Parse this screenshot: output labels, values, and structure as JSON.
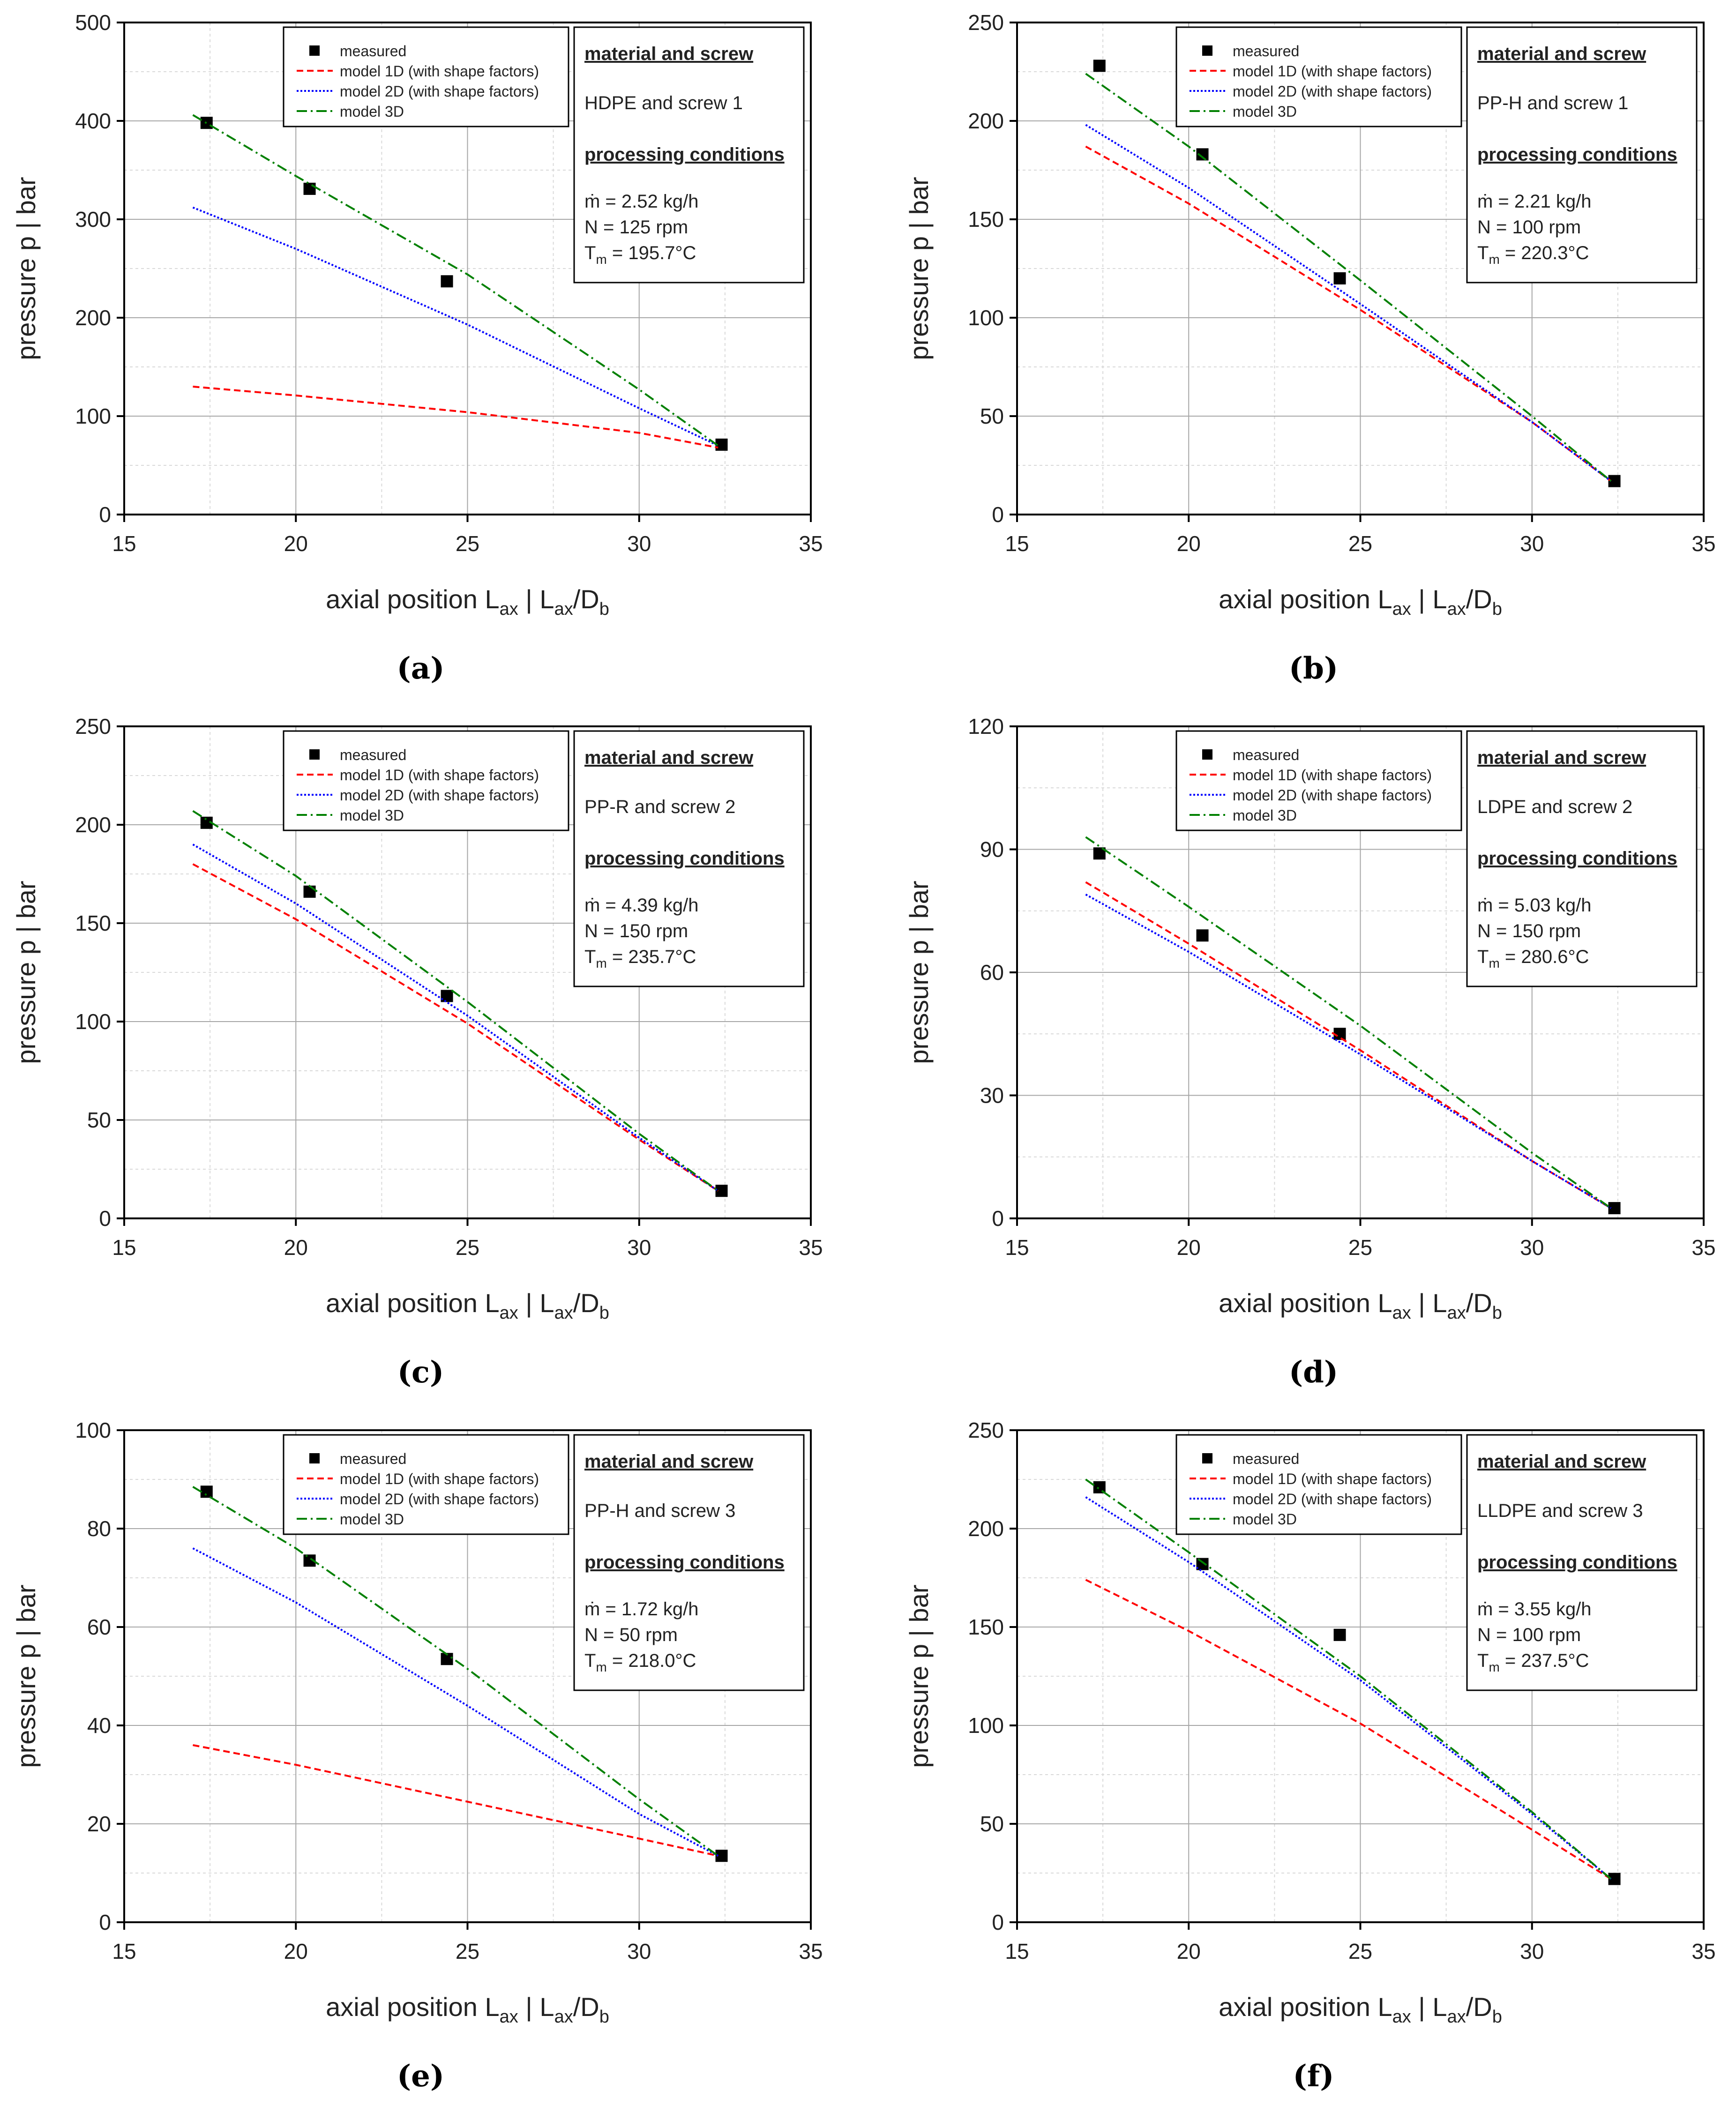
{
  "figure": {
    "xlabel": {
      "main": "axial position L",
      "sub1": "ax",
      "sep": " | L",
      "sub2": "ax",
      "tail": "/D",
      "sub3": "b"
    },
    "ylabel": "pressure p | bar",
    "info_heading_1": "material and screw",
    "info_heading_2": "processing conditions",
    "legend_labels": {
      "measured": "measured",
      "model1d": "model 1D (with shape factors)",
      "model2d": "model 2D (with shape factors)",
      "model3d": "model 3D"
    },
    "colors": {
      "measured": "#000000",
      "model1d": "#ff0000",
      "model2d": "#0000ff",
      "model3d": "#008000",
      "grid": "#a6a6a6",
      "axis": "#000000"
    }
  },
  "chart_data": [
    {
      "type": "line",
      "label": "(a)",
      "material_screw": "HDPE and screw 1",
      "mass_flow": "ṁ = 2.52 kg/h",
      "speed": "N = 125 rpm",
      "temp_prefix": "T",
      "temp_sub": "m",
      "temp_value": " = 195.7°C",
      "xlim": [
        15,
        35
      ],
      "ylim": [
        0,
        500
      ],
      "xticks": [
        15,
        20,
        25,
        30,
        35
      ],
      "yticks": [
        0,
        100,
        200,
        300,
        400,
        500
      ],
      "series": [
        {
          "name": "measured",
          "kind": "scatter",
          "x": [
            17.4,
            20.4,
            24.4,
            32.4
          ],
          "y": [
            398,
            331,
            237,
            71
          ]
        },
        {
          "name": "model 1D (with shape factors)",
          "kind": "line",
          "x": [
            17.0,
            20.0,
            25.0,
            30.0,
            32.3
          ],
          "y": [
            130,
            121,
            104,
            83,
            68
          ]
        },
        {
          "name": "model 2D (with shape factors)",
          "kind": "line",
          "x": [
            17.0,
            20.0,
            25.0,
            30.0,
            32.3
          ],
          "y": [
            312,
            270,
            193,
            108,
            70
          ]
        },
        {
          "name": "model 3D",
          "kind": "line",
          "x": [
            17.0,
            20.0,
            25.0,
            30.0,
            32.3
          ],
          "y": [
            406,
            344,
            244,
            127,
            70
          ]
        }
      ]
    },
    {
      "type": "line",
      "label": "(b)",
      "material_screw": "PP-H and screw 1",
      "mass_flow": "ṁ = 2.21 kg/h",
      "speed": "N = 100 rpm",
      "temp_prefix": "T",
      "temp_sub": "m",
      "temp_value": " = 220.3°C",
      "xlim": [
        15,
        35
      ],
      "ylim": [
        0,
        250
      ],
      "xticks": [
        15,
        20,
        25,
        30,
        35
      ],
      "yticks": [
        0,
        50,
        100,
        150,
        200,
        250
      ],
      "series": [
        {
          "name": "measured",
          "kind": "scatter",
          "x": [
            17.4,
            20.4,
            24.4,
            32.4
          ],
          "y": [
            228,
            183,
            120,
            17
          ]
        },
        {
          "name": "model 1D (with shape factors)",
          "kind": "line",
          "x": [
            17.0,
            20.0,
            25.0,
            30.0,
            32.3
          ],
          "y": [
            187,
            158,
            104,
            47,
            17
          ]
        },
        {
          "name": "model 2D (with shape factors)",
          "kind": "line",
          "x": [
            17.0,
            20.0,
            25.0,
            30.0,
            32.3
          ],
          "y": [
            198,
            166,
            107,
            47,
            17
          ]
        },
        {
          "name": "model 3D",
          "kind": "line",
          "x": [
            17.0,
            20.0,
            25.0,
            30.0,
            32.3
          ],
          "y": [
            224,
            187,
            119,
            50,
            17
          ]
        }
      ]
    },
    {
      "type": "line",
      "label": "(c)",
      "material_screw": "PP-R and screw 2",
      "mass_flow": "ṁ = 4.39 kg/h",
      "speed": "N = 150 rpm",
      "temp_prefix": "T",
      "temp_sub": "m",
      "temp_value": " = 235.7°C",
      "xlim": [
        15,
        35
      ],
      "ylim": [
        0,
        250
      ],
      "xticks": [
        15,
        20,
        25,
        30,
        35
      ],
      "yticks": [
        0,
        50,
        100,
        150,
        200,
        250
      ],
      "series": [
        {
          "name": "measured",
          "kind": "scatter",
          "x": [
            17.4,
            20.4,
            24.4,
            32.4
          ],
          "y": [
            201,
            166,
            113,
            14
          ]
        },
        {
          "name": "model 1D (with shape factors)",
          "kind": "line",
          "x": [
            17.0,
            20.0,
            25.0,
            30.0,
            32.3
          ],
          "y": [
            180,
            152,
            99,
            40,
            14
          ]
        },
        {
          "name": "model 2D (with shape factors)",
          "kind": "line",
          "x": [
            17.0,
            20.0,
            25.0,
            30.0,
            32.3
          ],
          "y": [
            190,
            160,
            103,
            41,
            14
          ]
        },
        {
          "name": "model 3D",
          "kind": "line",
          "x": [
            17.0,
            20.0,
            25.0,
            30.0,
            32.3
          ],
          "y": [
            207,
            174,
            110,
            43,
            14
          ]
        }
      ]
    },
    {
      "type": "line",
      "label": "(d)",
      "material_screw": "LDPE and screw 2",
      "mass_flow": "ṁ = 5.03 kg/h",
      "speed": "N = 150 rpm",
      "temp_prefix": "T",
      "temp_sub": "m",
      "temp_value": " = 280.6°C",
      "xlim": [
        15,
        35
      ],
      "ylim": [
        0,
        120
      ],
      "xticks": [
        15,
        20,
        25,
        30,
        35
      ],
      "yticks": [
        0,
        30,
        60,
        90,
        120
      ],
      "series": [
        {
          "name": "measured",
          "kind": "scatter",
          "x": [
            17.4,
            20.4,
            24.4,
            32.4
          ],
          "y": [
            89,
            69,
            45,
            2.5
          ]
        },
        {
          "name": "model 1D (with shape factors)",
          "kind": "line",
          "x": [
            17.0,
            20.0,
            25.0,
            30.0,
            32.3
          ],
          "y": [
            82,
            67,
            41,
            14,
            2.5
          ]
        },
        {
          "name": "model 2D (with shape factors)",
          "kind": "line",
          "x": [
            17.0,
            20.0,
            25.0,
            30.0,
            32.3
          ],
          "y": [
            79,
            65,
            40,
            14,
            2.5
          ]
        },
        {
          "name": "model 3D",
          "kind": "line",
          "x": [
            17.0,
            20.0,
            25.0,
            30.0,
            32.3
          ],
          "y": [
            93,
            76,
            47,
            16,
            2.5
          ]
        }
      ]
    },
    {
      "type": "line",
      "label": "(e)",
      "material_screw": "PP-H and screw 3",
      "mass_flow": "ṁ = 1.72 kg/h",
      "speed": "N = 50 rpm",
      "temp_prefix": "T",
      "temp_sub": "m",
      "temp_value": " = 218.0°C",
      "xlim": [
        15,
        35
      ],
      "ylim": [
        0,
        100
      ],
      "xticks": [
        15,
        20,
        25,
        30,
        35
      ],
      "yticks": [
        0,
        20,
        40,
        60,
        80,
        100
      ],
      "series": [
        {
          "name": "measured",
          "kind": "scatter",
          "x": [
            17.4,
            20.4,
            24.4,
            32.4
          ],
          "y": [
            87.5,
            73.5,
            53.5,
            13.5
          ]
        },
        {
          "name": "model 1D (with shape factors)",
          "kind": "line",
          "x": [
            17.0,
            20.0,
            25.0,
            30.0,
            32.3
          ],
          "y": [
            36,
            32,
            24.5,
            17,
            13.5
          ]
        },
        {
          "name": "model 2D (with shape factors)",
          "kind": "line",
          "x": [
            17.0,
            20.0,
            25.0,
            30.0,
            32.3
          ],
          "y": [
            76,
            65,
            44,
            22,
            13.5
          ]
        },
        {
          "name": "model 3D",
          "kind": "line",
          "x": [
            17.0,
            20.0,
            25.0,
            30.0,
            32.3
          ],
          "y": [
            88.5,
            76,
            51.5,
            25,
            13.5
          ]
        }
      ]
    },
    {
      "type": "line",
      "label": "(f)",
      "material_screw": "LLDPE and screw 3",
      "mass_flow": "ṁ = 3.55 kg/h",
      "speed": "N = 100 rpm",
      "temp_prefix": "T",
      "temp_sub": "m",
      "temp_value": " = 237.5°C",
      "xlim": [
        15,
        35
      ],
      "ylim": [
        0,
        250
      ],
      "xticks": [
        15,
        20,
        25,
        30,
        35
      ],
      "yticks": [
        0,
        50,
        100,
        150,
        200,
        250
      ],
      "series": [
        {
          "name": "measured",
          "kind": "scatter",
          "x": [
            17.4,
            20.4,
            24.4,
            32.4
          ],
          "y": [
            221,
            182,
            146,
            22
          ]
        },
        {
          "name": "model 1D (with shape factors)",
          "kind": "line",
          "x": [
            17.0,
            20.0,
            25.0,
            30.0,
            32.3
          ],
          "y": [
            174,
            148,
            101,
            47,
            22
          ]
        },
        {
          "name": "model 2D (with shape factors)",
          "kind": "line",
          "x": [
            17.0,
            20.0,
            25.0,
            30.0,
            32.3
          ],
          "y": [
            216,
            183,
            123,
            55,
            22
          ]
        },
        {
          "name": "model 3D",
          "kind": "line",
          "x": [
            17.0,
            20.0,
            25.0,
            30.0,
            32.3
          ],
          "y": [
            225,
            188,
            125,
            56,
            22
          ]
        }
      ]
    }
  ]
}
